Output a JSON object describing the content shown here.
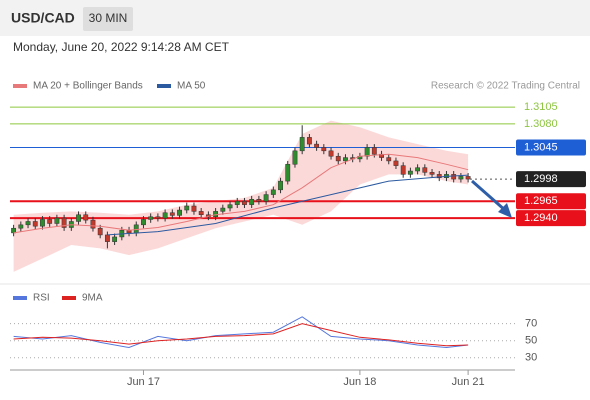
{
  "header": {
    "symbol": "USD/CAD",
    "timeframe": "30 MIN",
    "timestamp": "Monday, June 20, 2022 9:14:28 AM CET",
    "source": "Research © 2022 Trading Central"
  },
  "chart_data": [
    {
      "type": "candlestick",
      "x": [
        0,
        1,
        2,
        3,
        4,
        5,
        6,
        7,
        8,
        9,
        10,
        11,
        12,
        13,
        14,
        15,
        16,
        17,
        18,
        19,
        20,
        21,
        22,
        23,
        24,
        25,
        26,
        27,
        28,
        29,
        30,
        31,
        32,
        33,
        34,
        35,
        36,
        37,
        38,
        39,
        40,
        41,
        42,
        43,
        44,
        45,
        46,
        47,
        48,
        49,
        50,
        51,
        52,
        53,
        54,
        55,
        56,
        57,
        58,
        59,
        60,
        61,
        62,
        63
      ],
      "open": [
        1.2918,
        1.2925,
        1.293,
        1.2935,
        1.2928,
        1.2938,
        1.2932,
        1.294,
        1.2926,
        1.2935,
        1.2945,
        1.2937,
        1.2925,
        1.2915,
        1.2905,
        1.2912,
        1.2922,
        1.2918,
        1.293,
        1.2938,
        1.2942,
        1.294,
        1.2948,
        1.2944,
        1.2952,
        1.2958,
        1.295,
        1.2945,
        1.2942,
        1.295,
        1.2955,
        1.296,
        1.2965,
        1.296,
        1.2968,
        1.2965,
        1.2975,
        1.2982,
        1.2995,
        1.302,
        1.304,
        1.306,
        1.305,
        1.3045,
        1.304,
        1.3032,
        1.3025,
        1.303,
        1.3028,
        1.3032,
        1.3045,
        1.3035,
        1.303,
        1.3025,
        1.3018,
        1.3005,
        1.301,
        1.3015,
        1.3008,
        1.3005,
        1.3,
        1.3005,
        1.2998,
        1.3002
      ],
      "high": [
        1.293,
        1.2935,
        1.294,
        1.294,
        1.2943,
        1.2943,
        1.2945,
        1.2945,
        1.294,
        1.295,
        1.295,
        1.2942,
        1.293,
        1.292,
        1.2917,
        1.2927,
        1.2927,
        1.2935,
        1.2943,
        1.2947,
        1.2947,
        1.2953,
        1.2953,
        1.2957,
        1.2963,
        1.2963,
        1.2955,
        1.295,
        1.2955,
        1.296,
        1.2965,
        1.297,
        1.297,
        1.2973,
        1.2973,
        1.298,
        1.2987,
        1.3,
        1.3025,
        1.3045,
        1.3078,
        1.3065,
        1.3055,
        1.305,
        1.3045,
        1.3037,
        1.3035,
        1.3035,
        1.3037,
        1.305,
        1.305,
        1.304,
        1.3035,
        1.303,
        1.3023,
        1.3015,
        1.302,
        1.302,
        1.3013,
        1.301,
        1.301,
        1.301,
        1.3007,
        1.3007
      ],
      "low": [
        1.2913,
        1.292,
        1.2925,
        1.2923,
        1.2923,
        1.2927,
        1.2927,
        1.2921,
        1.2921,
        1.293,
        1.2932,
        1.292,
        1.291,
        1.2895,
        1.29,
        1.2907,
        1.2913,
        1.2913,
        1.2925,
        1.2933,
        1.2935,
        1.2935,
        1.2939,
        1.2939,
        1.2947,
        1.2945,
        1.294,
        1.2937,
        1.2937,
        1.2945,
        1.295,
        1.2955,
        1.2955,
        1.2955,
        1.296,
        1.296,
        1.297,
        1.2977,
        1.299,
        1.3015,
        1.3035,
        1.3045,
        1.304,
        1.3035,
        1.3027,
        1.302,
        1.302,
        1.3023,
        1.3023,
        1.3027,
        1.303,
        1.3025,
        1.302,
        1.3013,
        1.3,
        1.3,
        1.3005,
        1.3003,
        1.3,
        1.2995,
        1.2995,
        1.2993,
        1.2993,
        1.2993
      ],
      "close": [
        1.2925,
        1.293,
        1.2935,
        1.2928,
        1.2938,
        1.2932,
        1.294,
        1.2926,
        1.2935,
        1.2945,
        1.2937,
        1.2925,
        1.2915,
        1.2905,
        1.2912,
        1.2922,
        1.2918,
        1.293,
        1.2938,
        1.2942,
        1.294,
        1.2948,
        1.2944,
        1.2952,
        1.2958,
        1.295,
        1.2945,
        1.2942,
        1.295,
        1.2955,
        1.296,
        1.2965,
        1.296,
        1.2968,
        1.2965,
        1.2975,
        1.2982,
        1.2995,
        1.302,
        1.304,
        1.306,
        1.305,
        1.3045,
        1.304,
        1.3032,
        1.3025,
        1.303,
        1.3028,
        1.3032,
        1.3045,
        1.3035,
        1.303,
        1.3025,
        1.3018,
        1.3005,
        1.301,
        1.3015,
        1.3008,
        1.3005,
        1.3,
        1.3005,
        1.2998,
        1.3002,
        1.2998
      ],
      "up_color": "#2e8b2e",
      "down_color": "#c0392b",
      "series": [
        {
          "name": "MA 20 + Bollinger Bands",
          "color": "#e8797a",
          "band_color": "#fcd9d9",
          "x": [
            0,
            4,
            8,
            12,
            16,
            20,
            24,
            28,
            32,
            36,
            40,
            44,
            48,
            52,
            56,
            60,
            63
          ],
          "values": [
            1.2918,
            1.2925,
            1.293,
            1.2928,
            1.2922,
            1.2926,
            1.2935,
            1.2945,
            1.295,
            1.296,
            1.2985,
            1.3015,
            1.3032,
            1.3035,
            1.303,
            1.302,
            1.3012
          ],
          "upper": [
            1.2945,
            1.2948,
            1.295,
            1.2948,
            1.2945,
            1.295,
            1.296,
            1.2965,
            1.297,
            1.2985,
            1.3065,
            1.3085,
            1.3075,
            1.306,
            1.305,
            1.304,
            1.3035
          ],
          "lower": [
            1.286,
            1.288,
            1.29,
            1.2895,
            1.2885,
            1.2895,
            1.291,
            1.2925,
            1.2935,
            1.2945,
            1.293,
            1.295,
            1.299,
            1.3005,
            1.3005,
            1.2995,
            1.299
          ]
        },
        {
          "name": "MA 50",
          "color": "#2c5aa0",
          "x": [
            13,
            20,
            28,
            36,
            44,
            52,
            60,
            63
          ],
          "values": [
            1.2915,
            1.292,
            1.2932,
            1.2955,
            1.2975,
            1.2995,
            1.3002,
            1.3004
          ]
        }
      ],
      "levels": [
        {
          "value": 1.3105,
          "color": "#8dc63f",
          "style": "plain",
          "line": "solid"
        },
        {
          "value": 1.308,
          "label": "1.3080",
          "color": "#8dc63f",
          "style": "plain",
          "line": "solid"
        },
        {
          "value": 1.3045,
          "color": "#1f5fd6",
          "style": "box",
          "line": "solid"
        },
        {
          "value": 1.2998,
          "color": "#222222",
          "style": "box",
          "line": "dotted"
        },
        {
          "value": 1.2965,
          "color": "#e8101a",
          "style": "box",
          "line": "thick"
        },
        {
          "value": 1.294,
          "label": "1.2940",
          "color": "#e8101a",
          "style": "box",
          "line": "thick"
        }
      ],
      "xlim": [
        -0.5,
        69.5
      ],
      "ylim": [
        1.2848,
        1.3123
      ],
      "xticks": [
        {
          "value": 18,
          "label": "Jun 17"
        },
        {
          "value": 48,
          "label": "Jun 18"
        },
        {
          "value": 63,
          "label": "Jun 21"
        }
      ]
    },
    {
      "type": "line",
      "x": [
        0,
        4,
        8,
        12,
        16,
        20,
        24,
        28,
        32,
        36,
        40,
        44,
        48,
        52,
        56,
        60,
        63
      ],
      "series": [
        {
          "name": "RSI",
          "color": "#5577dd",
          "values": [
            55,
            52,
            56,
            48,
            42,
            55,
            50,
            56,
            58,
            60,
            78,
            55,
            52,
            50,
            45,
            42,
            45
          ]
        },
        {
          "name": "9MA",
          "color": "#dd2222",
          "values": [
            52,
            54,
            53,
            50,
            46,
            50,
            52,
            55,
            56,
            58,
            70,
            62,
            54,
            51,
            47,
            44,
            45
          ]
        }
      ],
      "xlim": [
        -0.5,
        69.5
      ],
      "ylim": [
        18,
        86
      ],
      "yticks": [
        30,
        50,
        70
      ],
      "grid": true
    }
  ]
}
